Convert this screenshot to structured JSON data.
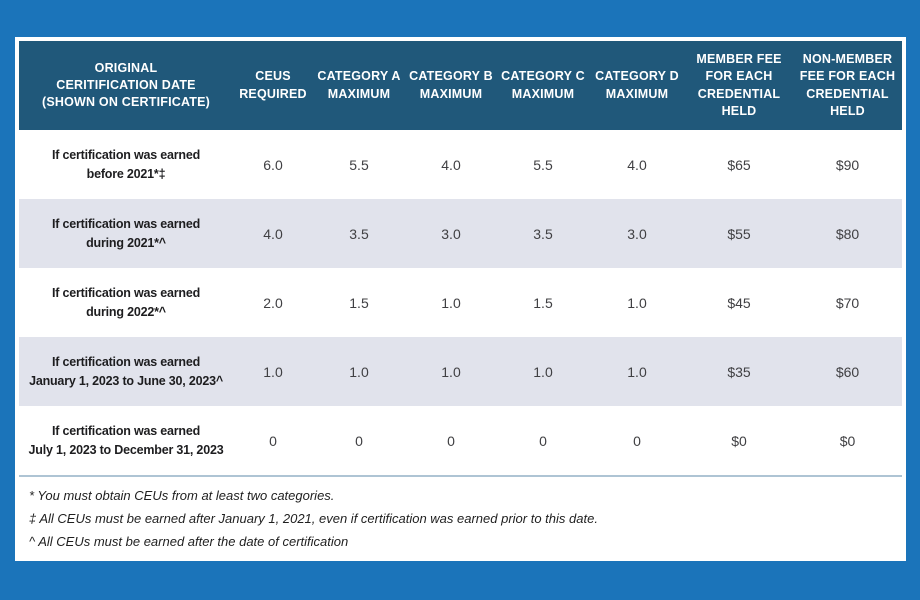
{
  "colors": {
    "background_blue": "#1b74ba",
    "header_blue": "#20587a",
    "row_alt_gray": "#e1e3ec",
    "separator_line": "#aec4d4",
    "header_text": "#ffffff"
  },
  "table": {
    "headers": [
      "ORIGINAL\nCERITIFICATION DATE\n(SHOWN ON CERTIFICATE)",
      "CEUS\nREQUIRED",
      "CATEGORY A\nMAXIMUM",
      "CATEGORY B\nMAXIMUM",
      "CATEGORY C\nMAXIMUM",
      "CATEGORY D\nMAXIMUM",
      "MEMBER FEE\nFOR EACH\nCREDENTIAL\nHELD",
      "NON-MEMBER\nFEE FOR EACH\nCREDENTIAL\nHELD"
    ],
    "rows": [
      {
        "label": "If certification was earned\nbefore 2021*‡",
        "values": [
          "6.0",
          "5.5",
          "4.0",
          "5.5",
          "4.0",
          "$65",
          "$90"
        ]
      },
      {
        "label": "If certification was earned\nduring 2021*^",
        "values": [
          "4.0",
          "3.5",
          "3.0",
          "3.5",
          "3.0",
          "$55",
          "$80"
        ]
      },
      {
        "label": "If certification was earned\nduring 2022*^",
        "values": [
          "2.0",
          "1.5",
          "1.0",
          "1.5",
          "1.0",
          "$45",
          "$70"
        ]
      },
      {
        "label": "If certification was earned\nJanuary 1, 2023 to June 30, 2023^",
        "values": [
          "1.0",
          "1.0",
          "1.0",
          "1.0",
          "1.0",
          "$35",
          "$60"
        ]
      },
      {
        "label": "If certification was earned\nJuly 1, 2023 to December 31, 2023",
        "values": [
          "0",
          "0",
          "0",
          "0",
          "0",
          "$0",
          "$0"
        ]
      }
    ],
    "footnotes": [
      "* You must obtain CEUs from at least two categories.",
      "‡ All CEUs must be earned after January 1, 2021, even if certification was earned prior to this date.",
      "^ All CEUs must be earned after the date of certification"
    ]
  },
  "chart_data": {
    "type": "table",
    "columns": [
      "ORIGINAL CERITIFICATION DATE (SHOWN ON CERTIFICATE)",
      "CEUS REQUIRED",
      "CATEGORY A MAXIMUM",
      "CATEGORY B MAXIMUM",
      "CATEGORY C MAXIMUM",
      "CATEGORY D MAXIMUM",
      "MEMBER FEE FOR EACH CREDENTIAL HELD",
      "NON-MEMBER FEE FOR EACH CREDENTIAL HELD"
    ],
    "rows": [
      [
        "If certification was earned before 2021*‡",
        "6.0",
        "5.5",
        "4.0",
        "5.5",
        "4.0",
        "$65",
        "$90"
      ],
      [
        "If certification was earned during 2021*^",
        "4.0",
        "3.5",
        "3.0",
        "3.5",
        "3.0",
        "$55",
        "$80"
      ],
      [
        "If certification was earned during 2022*^",
        "2.0",
        "1.5",
        "1.0",
        "1.5",
        "1.0",
        "$45",
        "$70"
      ],
      [
        "If certification was earned January 1, 2023 to June 30, 2023^",
        "1.0",
        "1.0",
        "1.0",
        "1.0",
        "1.0",
        "$35",
        "$60"
      ],
      [
        "If certification was earned July 1, 2023 to December 31, 2023",
        "0",
        "0",
        "0",
        "0",
        "0",
        "$0",
        "$0"
      ]
    ],
    "footnotes": [
      "* You must obtain CEUs from at least two categories.",
      "‡ All CEUs must be earned after January 1, 2021, even if certification was earned prior to this date.",
      "^ All CEUs must be earned after the date of certification"
    ]
  }
}
